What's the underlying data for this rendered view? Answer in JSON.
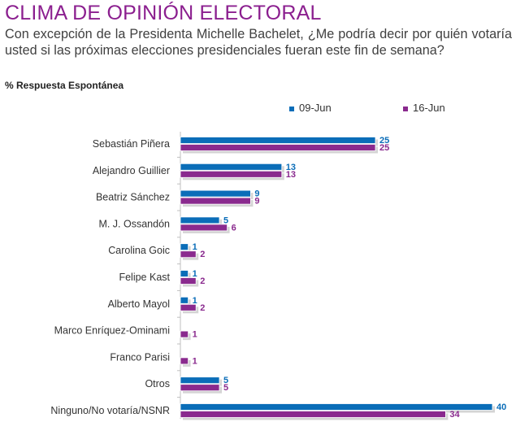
{
  "header": {
    "title": "CLIMA DE OPINIÓN ELECTORAL",
    "question": "Con excepción de la Presidenta Michelle Bachelet, ¿Me podría decir por quién votaría usted si las próximas elecciones presidenciales fueran este fin de semana?",
    "note": "% Respuesta Espontánea"
  },
  "colors": {
    "title": "#8b1f8f",
    "series1": "#0a6db8",
    "series2": "#8a2a8e"
  },
  "chart_data": {
    "type": "bar",
    "orientation": "horizontal",
    "categories": [
      "Sebastián Piñera",
      "Alejandro  Guillier",
      "Beatriz Sánchez",
      "M. J. Ossandón",
      "Carolina Goic",
      "Felipe Kast",
      "Alberto Mayol",
      "Marco Enríquez-Ominami",
      "Franco Parisi",
      "Otros",
      "Ninguno/No votaría/NSNR"
    ],
    "series": [
      {
        "name": "09-Jun",
        "values": [
          25,
          13,
          9,
          5,
          1,
          1,
          1,
          null,
          null,
          5,
          40
        ]
      },
      {
        "name": "16-Jun",
        "values": [
          25,
          13,
          9,
          6,
          2,
          2,
          2,
          1,
          1,
          5,
          34
        ]
      }
    ],
    "legend_position": "top-right",
    "grid": false
  }
}
